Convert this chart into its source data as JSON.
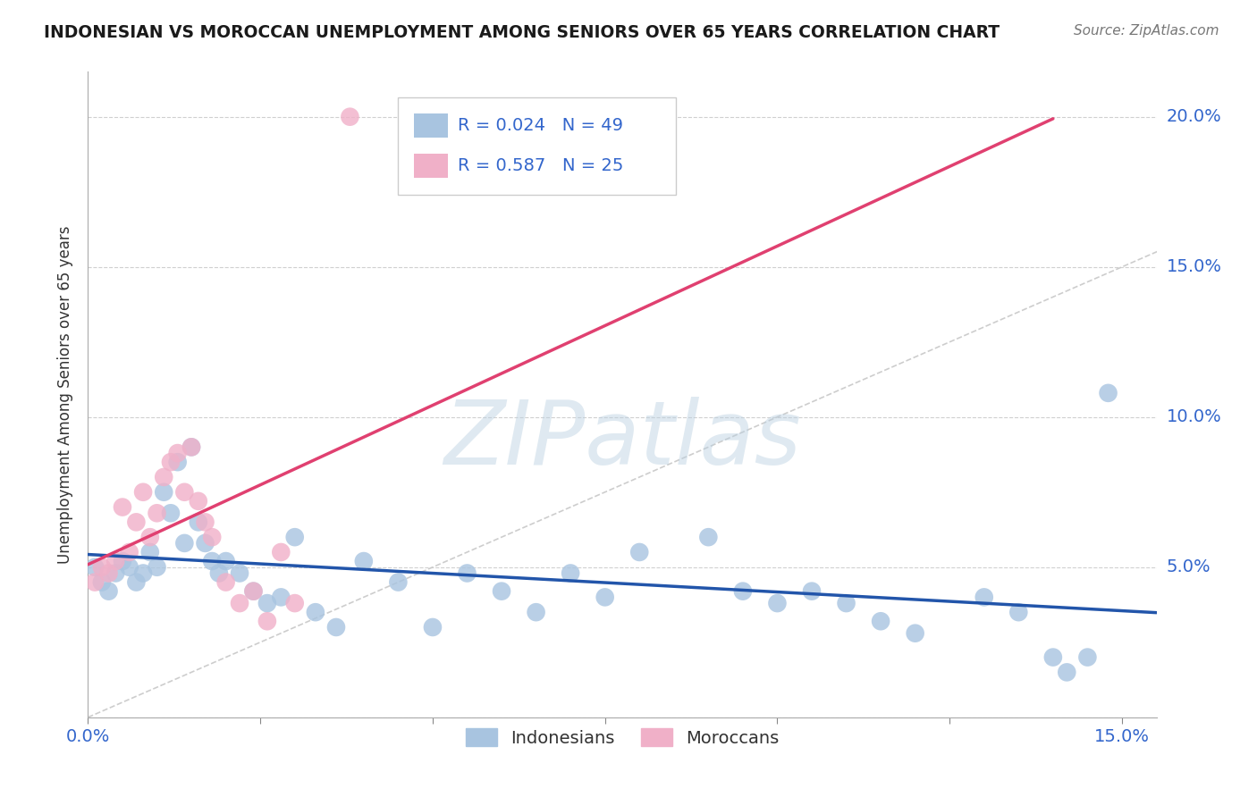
{
  "title": "INDONESIAN VS MOROCCAN UNEMPLOYMENT AMONG SENIORS OVER 65 YEARS CORRELATION CHART",
  "source": "Source: ZipAtlas.com",
  "ylabel": "Unemployment Among Seniors over 65 years",
  "xlim": [
    0.0,
    0.155
  ],
  "ylim": [
    0.0,
    0.215
  ],
  "x_ticks": [
    0.0,
    0.025,
    0.05,
    0.075,
    0.1,
    0.125,
    0.15
  ],
  "y_ticks": [
    0.0,
    0.05,
    0.1,
    0.15,
    0.2
  ],
  "indonesian_color": "#a8c4e0",
  "moroccan_color": "#f0b0c8",
  "indonesian_line_color": "#2255aa",
  "moroccan_line_color": "#e04070",
  "diagonal_color": "#c8c8c8",
  "legend_r_indo": "R = 0.024",
  "legend_n_indo": "N = 49",
  "legend_r_moro": "R = 0.587",
  "legend_n_moro": "N = 25",
  "indonesian_x": [
    0.001,
    0.002,
    0.003,
    0.004,
    0.005,
    0.006,
    0.007,
    0.008,
    0.009,
    0.01,
    0.011,
    0.012,
    0.013,
    0.014,
    0.015,
    0.016,
    0.017,
    0.018,
    0.019,
    0.02,
    0.022,
    0.024,
    0.026,
    0.028,
    0.03,
    0.033,
    0.036,
    0.04,
    0.045,
    0.05,
    0.055,
    0.06,
    0.065,
    0.07,
    0.075,
    0.08,
    0.09,
    0.095,
    0.1,
    0.105,
    0.11,
    0.115,
    0.12,
    0.13,
    0.135,
    0.14,
    0.142,
    0.145,
    0.148
  ],
  "indonesian_y": [
    0.05,
    0.045,
    0.042,
    0.048,
    0.052,
    0.05,
    0.045,
    0.048,
    0.055,
    0.05,
    0.075,
    0.068,
    0.085,
    0.058,
    0.09,
    0.065,
    0.058,
    0.052,
    0.048,
    0.052,
    0.048,
    0.042,
    0.038,
    0.04,
    0.06,
    0.035,
    0.03,
    0.052,
    0.045,
    0.03,
    0.048,
    0.042,
    0.035,
    0.048,
    0.04,
    0.055,
    0.06,
    0.042,
    0.038,
    0.042,
    0.038,
    0.032,
    0.028,
    0.04,
    0.035,
    0.02,
    0.015,
    0.02,
    0.108
  ],
  "moroccan_x": [
    0.001,
    0.002,
    0.003,
    0.004,
    0.005,
    0.006,
    0.007,
    0.008,
    0.009,
    0.01,
    0.011,
    0.012,
    0.013,
    0.014,
    0.015,
    0.016,
    0.017,
    0.018,
    0.02,
    0.022,
    0.024,
    0.026,
    0.028,
    0.03,
    0.038
  ],
  "moroccan_y": [
    0.045,
    0.05,
    0.048,
    0.052,
    0.07,
    0.055,
    0.065,
    0.075,
    0.06,
    0.068,
    0.08,
    0.085,
    0.088,
    0.075,
    0.09,
    0.072,
    0.065,
    0.06,
    0.045,
    0.038,
    0.042,
    0.032,
    0.055,
    0.038,
    0.2
  ],
  "moroccan_line_x_end": 0.14,
  "watermark_text": "ZIPatlas",
  "background_color": "#ffffff",
  "grid_color": "#d0d0d0"
}
